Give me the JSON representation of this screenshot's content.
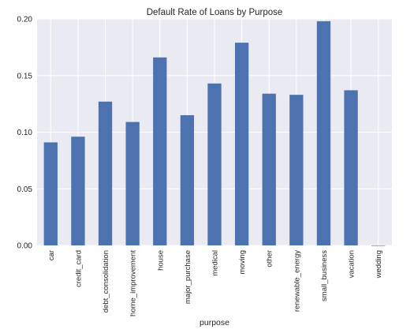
{
  "chart_data": {
    "type": "bar",
    "title": "Default Rate of Loans by Purpose",
    "xlabel": "purpose",
    "ylabel": "",
    "ylim": [
      0,
      0.2
    ],
    "yticks": [
      "0.00",
      "0.05",
      "0.10",
      "0.15",
      "0.20"
    ],
    "categories": [
      "car",
      "credit_card",
      "debt_consolidation",
      "home_improvement",
      "house",
      "major_purchase",
      "medical",
      "moving",
      "other",
      "renewable_energy",
      "small_business",
      "vacation",
      "wedding"
    ],
    "values": [
      0.091,
      0.096,
      0.127,
      0.109,
      0.166,
      0.115,
      0.143,
      0.179,
      0.134,
      0.133,
      0.198,
      0.137,
      0.0
    ],
    "grid": true,
    "bar_color": "#4C72B0",
    "background_color": "#EAEAF2"
  }
}
